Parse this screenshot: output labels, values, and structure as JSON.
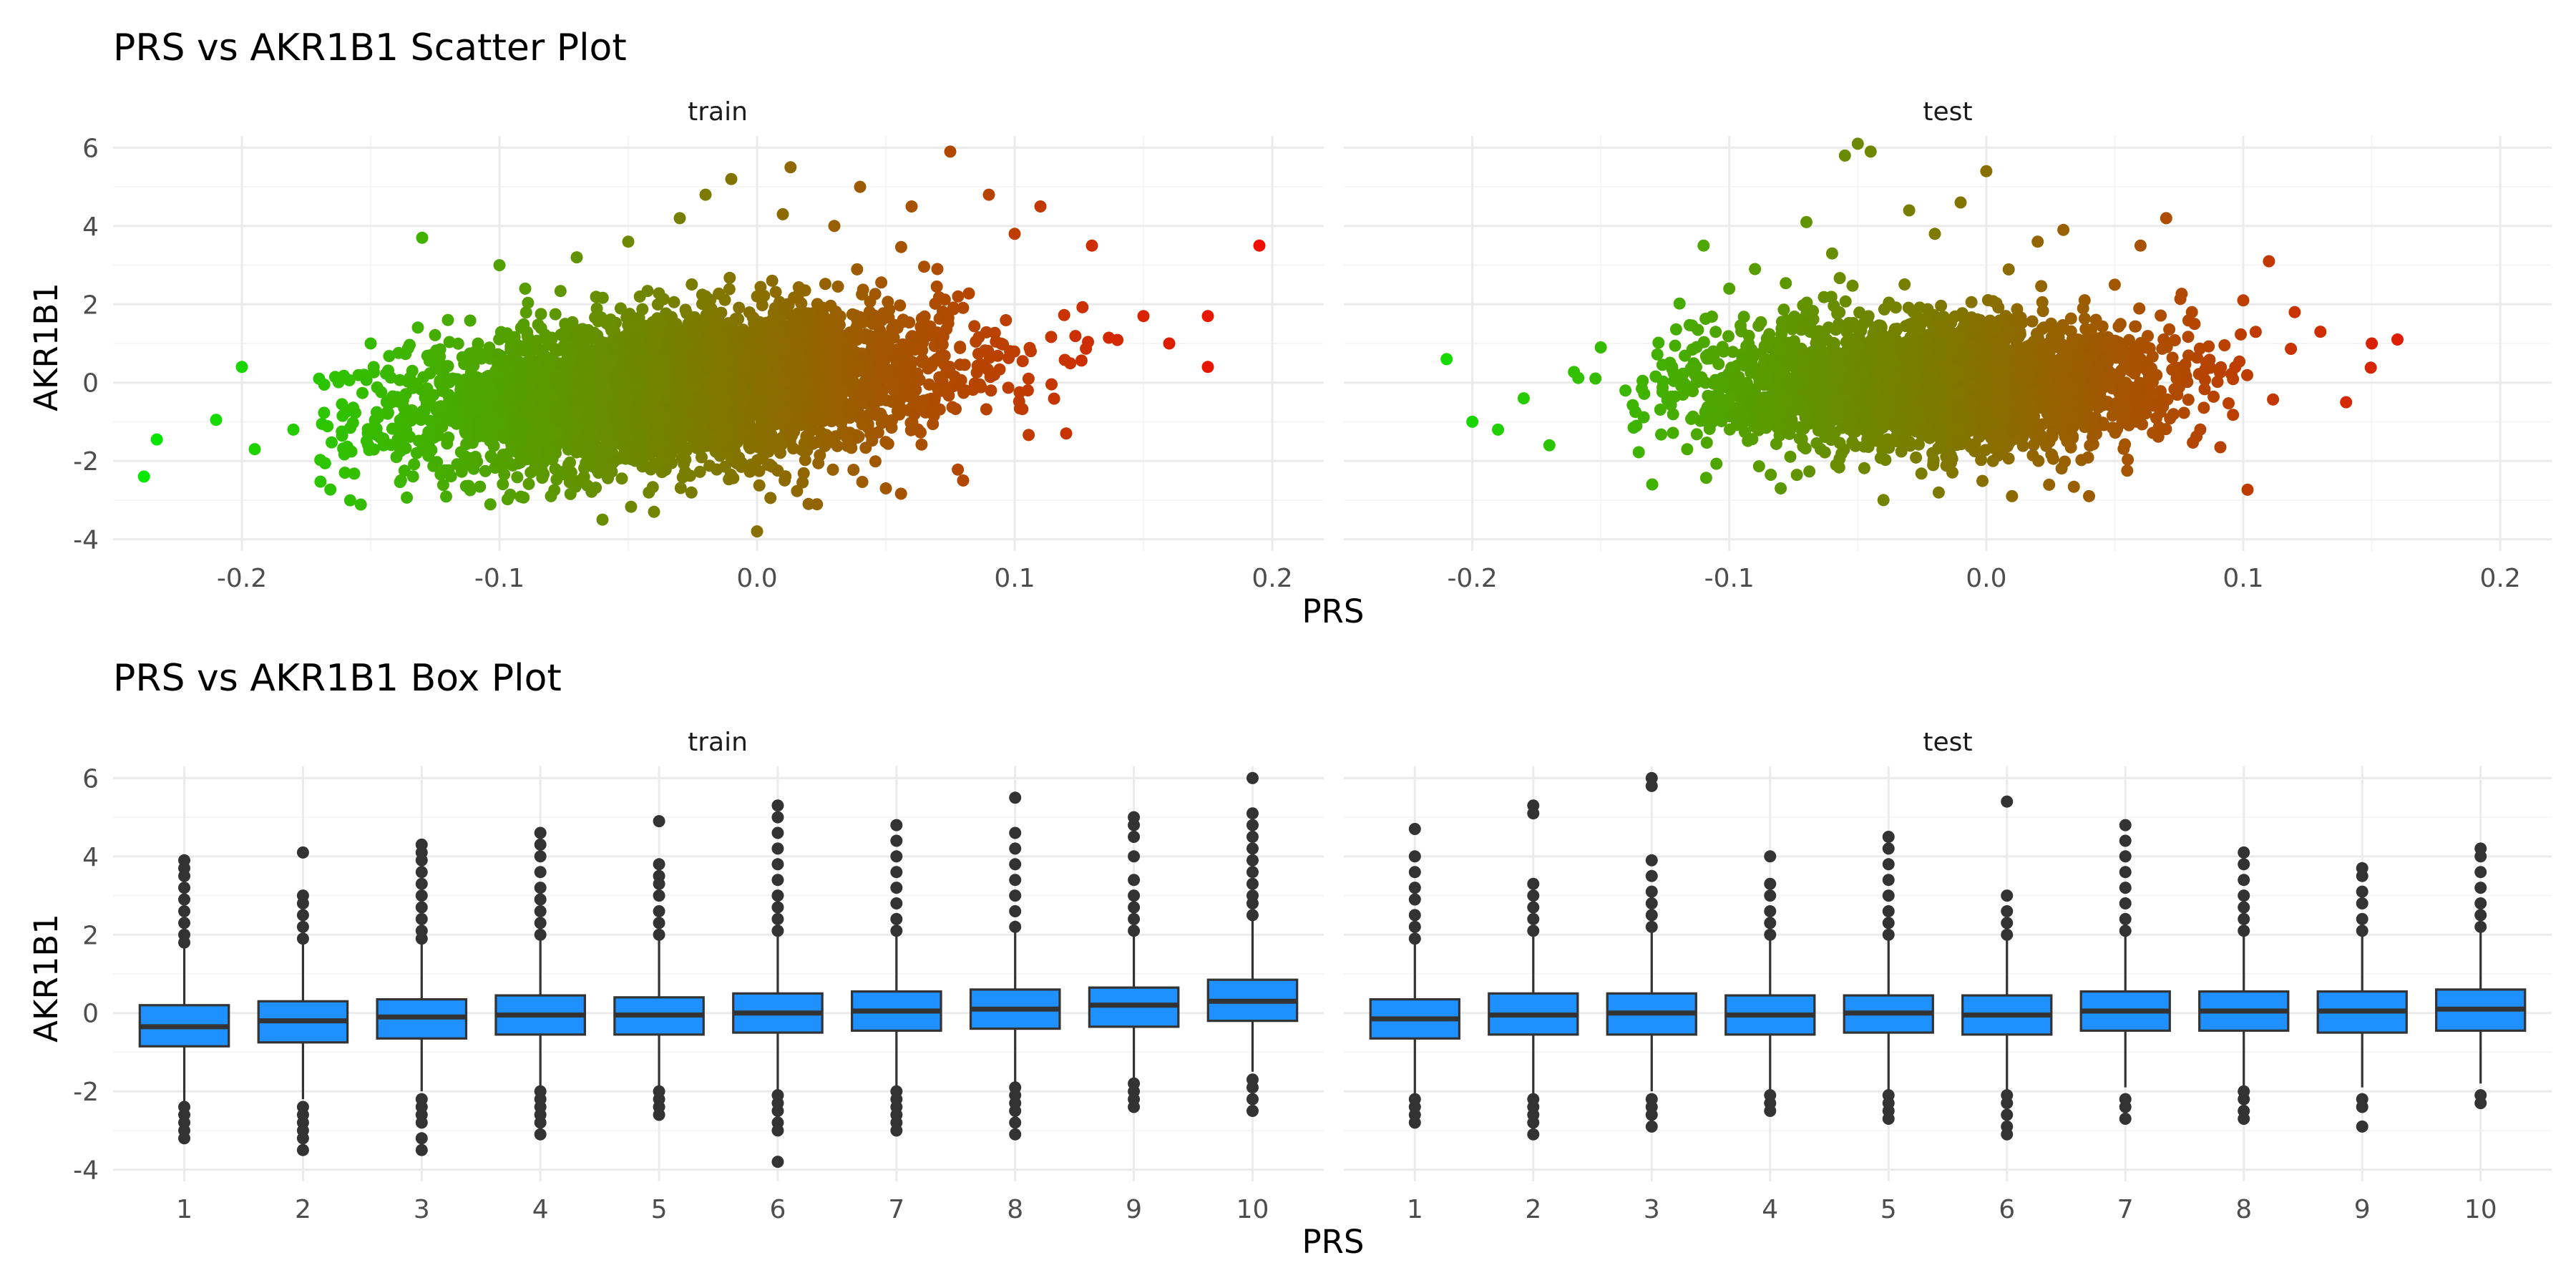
{
  "chart_data": [
    {
      "type": "scatter",
      "title": "PRS vs AKR1B1 Scatter Plot",
      "xlabel": "PRS",
      "ylabel": "AKR1B1",
      "panels": [
        "train",
        "test"
      ],
      "xlim": [
        -0.25,
        0.22
      ],
      "ylim": [
        -4.3,
        6.3
      ],
      "x_ticks": [
        -0.2,
        -0.1,
        0.0,
        0.1,
        0.2
      ],
      "x_tick_labels": [
        "-0.2",
        "-0.1",
        "0.0",
        "0.1",
        "0.2"
      ],
      "y_ticks": [
        -4,
        -2,
        0,
        2,
        4,
        6
      ],
      "y_tick_labels": [
        "-4",
        "-2",
        "0",
        "2",
        "4",
        "6"
      ],
      "grid": true,
      "color_gradient": [
        "#00ee00",
        "#ff0000"
      ],
      "series": [
        {
          "panel": "train",
          "points": [
            [
              -0.238,
              -2.4
            ],
            [
              -0.233,
              -1.45
            ],
            [
              -0.21,
              -0.95
            ],
            [
              -0.2,
              0.4
            ],
            [
              -0.195,
              -1.7
            ],
            [
              -0.18,
              -1.2
            ],
            [
              -0.17,
              0.1
            ],
            [
              -0.16,
              -2.3
            ],
            [
              -0.15,
              1.0
            ],
            [
              -0.14,
              -1.9
            ],
            [
              -0.13,
              3.7
            ],
            [
              -0.12,
              1.6
            ],
            [
              -0.11,
              -2.2
            ],
            [
              -0.1,
              3.0
            ],
            [
              -0.09,
              2.4
            ],
            [
              -0.08,
              -2.9
            ],
            [
              -0.07,
              3.2
            ],
            [
              -0.06,
              -3.5
            ],
            [
              -0.05,
              3.6
            ],
            [
              -0.04,
              -3.3
            ],
            [
              -0.03,
              4.2
            ],
            [
              -0.02,
              4.8
            ],
            [
              -0.01,
              5.2
            ],
            [
              0.0,
              -3.8
            ],
            [
              0.01,
              4.3
            ],
            [
              0.013,
              5.5
            ],
            [
              0.02,
              -3.1
            ],
            [
              0.03,
              4.0
            ],
            [
              0.04,
              5.0
            ],
            [
              0.05,
              -2.7
            ],
            [
              0.06,
              4.5
            ],
            [
              0.07,
              2.9
            ],
            [
              0.075,
              5.9
            ],
            [
              0.08,
              -2.5
            ],
            [
              0.09,
              4.8
            ],
            [
              0.1,
              3.8
            ],
            [
              0.11,
              4.5
            ],
            [
              0.12,
              -1.3
            ],
            [
              0.13,
              3.5
            ],
            [
              0.15,
              1.7
            ],
            [
              0.16,
              1.0
            ],
            [
              0.175,
              1.7
            ],
            [
              0.175,
              0.4
            ],
            [
              0.195,
              3.5
            ]
          ]
        },
        {
          "panel": "test",
          "points": [
            [
              -0.21,
              0.6
            ],
            [
              -0.2,
              -1.0
            ],
            [
              -0.19,
              -1.2
            ],
            [
              -0.18,
              -0.4
            ],
            [
              -0.17,
              -1.6
            ],
            [
              -0.15,
              0.9
            ],
            [
              -0.13,
              -2.6
            ],
            [
              -0.11,
              3.5
            ],
            [
              -0.1,
              2.4
            ],
            [
              -0.09,
              2.9
            ],
            [
              -0.08,
              -2.7
            ],
            [
              -0.07,
              4.1
            ],
            [
              -0.06,
              3.3
            ],
            [
              -0.055,
              5.8
            ],
            [
              -0.05,
              6.1
            ],
            [
              -0.045,
              5.9
            ],
            [
              -0.04,
              -3.0
            ],
            [
              -0.03,
              4.4
            ],
            [
              -0.02,
              3.8
            ],
            [
              -0.01,
              4.6
            ],
            [
              0.0,
              5.4
            ],
            [
              0.01,
              -2.9
            ],
            [
              0.02,
              3.6
            ],
            [
              0.03,
              3.9
            ],
            [
              0.04,
              -2.9
            ],
            [
              0.05,
              2.5
            ],
            [
              0.06,
              3.5
            ],
            [
              0.07,
              4.2
            ],
            [
              0.08,
              1.8
            ],
            [
              0.1,
              2.1
            ],
            [
              0.11,
              3.1
            ],
            [
              0.12,
              1.8
            ],
            [
              0.13,
              1.3
            ],
            [
              0.14,
              -0.5
            ],
            [
              0.15,
              1.0
            ],
            [
              0.16,
              1.1
            ]
          ]
        }
      ]
    },
    {
      "type": "box",
      "title": "PRS vs AKR1B1 Box Plot",
      "xlabel": "PRS",
      "ylabel": "AKR1B1",
      "panels": [
        "train",
        "test"
      ],
      "categories": [
        "1",
        "2",
        "3",
        "4",
        "5",
        "6",
        "7",
        "8",
        "9",
        "10"
      ],
      "ylim": [
        -4.3,
        6.3
      ],
      "y_ticks": [
        -4,
        -2,
        0,
        2,
        4,
        6
      ],
      "y_tick_labels": [
        "-4",
        "-2",
        "0",
        "2",
        "4",
        "6"
      ],
      "grid": true,
      "box_color": "#1e90ff",
      "series": [
        {
          "panel": "train",
          "boxes": [
            {
              "category": "1",
              "lower_whisker": -2.3,
              "q1": -0.85,
              "median": -0.35,
              "q3": 0.2,
              "upper_whisker": 1.7,
              "outliers": [
                -3.2,
                -3.0,
                -2.8,
                -2.6,
                -2.4,
                1.8,
                2.0,
                2.3,
                2.6,
                2.9,
                3.2,
                3.5,
                3.7,
                3.9
              ]
            },
            {
              "category": "2",
              "lower_whisker": -2.2,
              "q1": -0.75,
              "median": -0.2,
              "q3": 0.3,
              "upper_whisker": 1.8,
              "outliers": [
                -3.5,
                -3.2,
                -3.0,
                -2.8,
                -2.6,
                -2.4,
                1.9,
                2.2,
                2.5,
                2.8,
                3.0,
                4.1
              ]
            },
            {
              "category": "3",
              "lower_whisker": -2.0,
              "q1": -0.65,
              "median": -0.1,
              "q3": 0.35,
              "upper_whisker": 1.8,
              "outliers": [
                -3.5,
                -3.2,
                -2.8,
                -2.6,
                -2.4,
                -2.2,
                1.9,
                2.1,
                2.4,
                2.7,
                3.0,
                3.3,
                3.6,
                3.9,
                4.1,
                4.3
              ]
            },
            {
              "category": "4",
              "lower_whisker": -1.9,
              "q1": -0.55,
              "median": -0.05,
              "q3": 0.45,
              "upper_whisker": 1.9,
              "outliers": [
                -3.1,
                -2.8,
                -2.6,
                -2.4,
                -2.2,
                -2.0,
                2.0,
                2.3,
                2.6,
                2.9,
                3.2,
                3.6,
                4.0,
                4.3,
                4.6
              ]
            },
            {
              "category": "5",
              "lower_whisker": -1.9,
              "q1": -0.55,
              "median": -0.05,
              "q3": 0.4,
              "upper_whisker": 1.9,
              "outliers": [
                -2.6,
                -2.4,
                -2.2,
                -2.0,
                2.0,
                2.3,
                2.6,
                3.0,
                3.3,
                3.5,
                3.8,
                4.9
              ]
            },
            {
              "category": "6",
              "lower_whisker": -2.0,
              "q1": -0.5,
              "median": 0.0,
              "q3": 0.5,
              "upper_whisker": 2.0,
              "outliers": [
                -3.8,
                -3.0,
                -2.8,
                -2.5,
                -2.3,
                -2.1,
                2.1,
                2.4,
                2.7,
                3.0,
                3.4,
                3.8,
                4.2,
                4.6,
                5.0,
                5.3
              ]
            },
            {
              "category": "7",
              "lower_whisker": -1.9,
              "q1": -0.45,
              "median": 0.05,
              "q3": 0.55,
              "upper_whisker": 2.0,
              "outliers": [
                -3.0,
                -2.8,
                -2.6,
                -2.4,
                -2.2,
                -2.0,
                2.1,
                2.4,
                2.8,
                3.2,
                3.6,
                4.0,
                4.4,
                4.8
              ]
            },
            {
              "category": "8",
              "lower_whisker": -1.8,
              "q1": -0.4,
              "median": 0.1,
              "q3": 0.6,
              "upper_whisker": 2.1,
              "outliers": [
                -3.1,
                -2.8,
                -2.5,
                -2.3,
                -2.1,
                -1.9,
                2.2,
                2.6,
                3.0,
                3.4,
                3.8,
                4.2,
                4.6,
                5.5
              ]
            },
            {
              "category": "9",
              "lower_whisker": -1.7,
              "q1": -0.35,
              "median": 0.2,
              "q3": 0.65,
              "upper_whisker": 2.0,
              "outliers": [
                -2.4,
                -2.2,
                -2.0,
                -1.8,
                2.1,
                2.4,
                2.7,
                3.0,
                3.4,
                4.0,
                4.5,
                4.8,
                5.0
              ]
            },
            {
              "category": "10",
              "lower_whisker": -1.5,
              "q1": -0.2,
              "median": 0.3,
              "q3": 0.85,
              "upper_whisker": 2.4,
              "outliers": [
                -2.5,
                -2.2,
                -1.9,
                -1.7,
                2.5,
                2.8,
                3.0,
                3.3,
                3.6,
                3.9,
                4.2,
                4.5,
                4.8,
                5.1,
                6.0
              ]
            }
          ]
        },
        {
          "panel": "test",
          "boxes": [
            {
              "category": "1",
              "lower_whisker": -2.1,
              "q1": -0.65,
              "median": -0.15,
              "q3": 0.35,
              "upper_whisker": 1.8,
              "outliers": [
                -2.8,
                -2.6,
                -2.4,
                -2.2,
                1.9,
                2.2,
                2.5,
                2.9,
                3.2,
                3.6,
                4.0,
                4.7
              ]
            },
            {
              "category": "2",
              "lower_whisker": -2.1,
              "q1": -0.55,
              "median": -0.05,
              "q3": 0.5,
              "upper_whisker": 2.0,
              "outliers": [
                -3.1,
                -2.8,
                -2.6,
                -2.4,
                -2.2,
                2.1,
                2.4,
                2.7,
                3.0,
                3.3,
                5.1,
                5.3
              ]
            },
            {
              "category": "3",
              "lower_whisker": -2.0,
              "q1": -0.55,
              "median": 0.0,
              "q3": 0.5,
              "upper_whisker": 2.1,
              "outliers": [
                -2.9,
                -2.6,
                -2.4,
                -2.2,
                2.2,
                2.5,
                2.8,
                3.1,
                3.5,
                3.9,
                5.8,
                6.0
              ]
            },
            {
              "category": "4",
              "lower_whisker": -2.0,
              "q1": -0.55,
              "median": -0.05,
              "q3": 0.45,
              "upper_whisker": 1.9,
              "outliers": [
                -2.5,
                -2.3,
                -2.1,
                2.0,
                2.3,
                2.6,
                3.0,
                3.3,
                4.0
              ]
            },
            {
              "category": "5",
              "lower_whisker": -2.0,
              "q1": -0.5,
              "median": 0.0,
              "q3": 0.45,
              "upper_whisker": 1.9,
              "outliers": [
                -2.7,
                -2.5,
                -2.3,
                -2.1,
                2.0,
                2.3,
                2.6,
                3.0,
                3.4,
                3.8,
                4.2,
                4.5
              ]
            },
            {
              "category": "6",
              "lower_whisker": -2.0,
              "q1": -0.55,
              "median": -0.05,
              "q3": 0.45,
              "upper_whisker": 1.9,
              "outliers": [
                -3.1,
                -2.9,
                -2.6,
                -2.3,
                -2.1,
                2.0,
                2.3,
                2.6,
                3.0,
                5.4
              ]
            },
            {
              "category": "7",
              "lower_whisker": -1.9,
              "q1": -0.45,
              "median": 0.05,
              "q3": 0.55,
              "upper_whisker": 2.0,
              "outliers": [
                -2.7,
                -2.4,
                -2.2,
                2.1,
                2.4,
                2.8,
                3.2,
                3.6,
                4.0,
                4.4,
                4.8
              ]
            },
            {
              "category": "8",
              "lower_whisker": -1.9,
              "q1": -0.45,
              "median": 0.05,
              "q3": 0.55,
              "upper_whisker": 2.0,
              "outliers": [
                -2.7,
                -2.5,
                -2.2,
                -2.0,
                2.1,
                2.4,
                2.7,
                3.0,
                3.4,
                3.8,
                4.1
              ]
            },
            {
              "category": "9",
              "lower_whisker": -1.9,
              "q1": -0.5,
              "median": 0.05,
              "q3": 0.55,
              "upper_whisker": 2.0,
              "outliers": [
                -2.9,
                -2.4,
                -2.2,
                2.1,
                2.4,
                2.8,
                3.1,
                3.5,
                3.7
              ]
            },
            {
              "category": "10",
              "lower_whisker": -1.8,
              "q1": -0.45,
              "median": 0.1,
              "q3": 0.6,
              "upper_whisker": 2.1,
              "outliers": [
                -2.3,
                -2.1,
                2.2,
                2.5,
                2.8,
                3.2,
                3.6,
                4.0,
                4.2
              ]
            }
          ]
        }
      ]
    }
  ]
}
